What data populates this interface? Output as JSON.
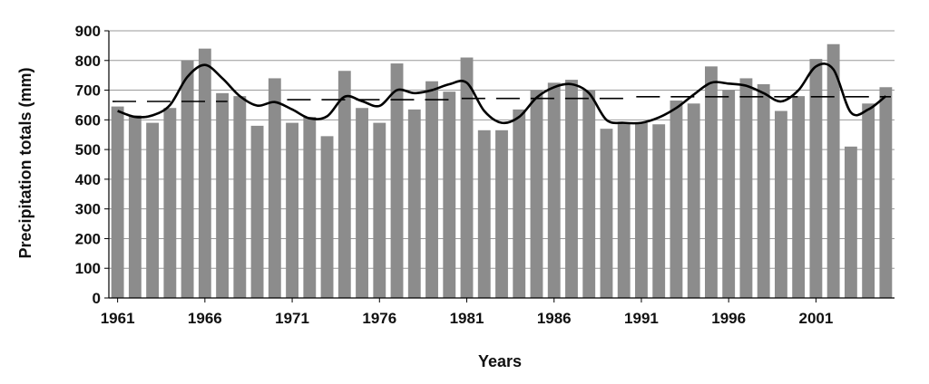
{
  "chart_data": {
    "type": "bar",
    "title": "",
    "xlabel": "Years",
    "ylabel": "Precipitation totals (mm)",
    "ylim": [
      0,
      900
    ],
    "yticks": [
      0,
      100,
      200,
      300,
      400,
      500,
      600,
      700,
      800,
      900
    ],
    "xtick_labels": [
      "1961",
      "1966",
      "1971",
      "1976",
      "1981",
      "1986",
      "1991",
      "1996",
      "2001"
    ],
    "grid": true,
    "legend": "none",
    "colors": {
      "bars": "#8c8c8c",
      "line": "#000000",
      "mean": "#000000",
      "grid": "#9a9a9a"
    },
    "x": [
      1961,
      1962,
      1963,
      1964,
      1965,
      1966,
      1967,
      1968,
      1969,
      1970,
      1971,
      1972,
      1973,
      1974,
      1975,
      1976,
      1977,
      1978,
      1979,
      1980,
      1981,
      1982,
      1983,
      1984,
      1985,
      1986,
      1987,
      1988,
      1989,
      1990,
      1991,
      1992,
      1993,
      1994,
      1995,
      1996,
      1997,
      1998,
      1999,
      2000,
      2001,
      2002,
      2003,
      2004,
      2005
    ],
    "series": [
      {
        "type": "bar",
        "values": [
          645,
          615,
          590,
          640,
          800,
          840,
          690,
          680,
          580,
          740,
          590,
          610,
          545,
          765,
          640,
          590,
          790,
          635,
          730,
          695,
          810,
          565,
          565,
          635,
          700,
          725,
          735,
          700,
          570,
          590,
          590,
          585,
          665,
          655,
          780,
          700,
          740,
          720,
          630,
          680,
          805,
          855,
          510,
          655,
          710
        ]
      },
      {
        "type": "line",
        "values": [
          630,
          610,
          615,
          650,
          745,
          785,
          740,
          680,
          648,
          660,
          635,
          605,
          612,
          678,
          663,
          647,
          700,
          690,
          700,
          720,
          725,
          630,
          590,
          610,
          675,
          710,
          720,
          690,
          600,
          590,
          590,
          608,
          640,
          685,
          725,
          722,
          715,
          690,
          662,
          700,
          780,
          770,
          625,
          635,
          680
        ]
      },
      {
        "type": "dashed-mean",
        "segments": [
          [
            1961,
            1967,
            662
          ],
          [
            1971,
            1980,
            668
          ],
          [
            1981,
            1990,
            672
          ],
          [
            1991,
            2000,
            678
          ],
          [
            2001,
            2005,
            678
          ]
        ]
      }
    ]
  }
}
